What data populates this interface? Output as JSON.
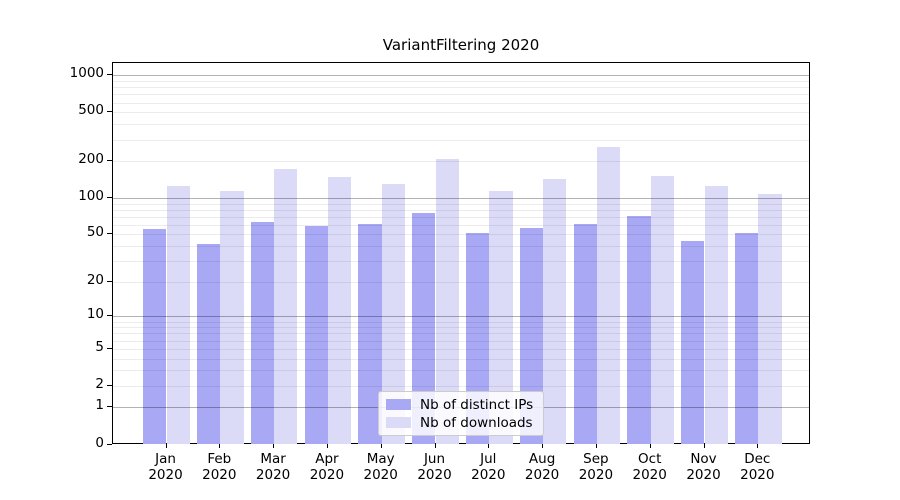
{
  "chart_data": {
    "type": "bar",
    "title": "VariantFiltering 2020",
    "categories": [
      "Jan",
      "Feb",
      "Mar",
      "Apr",
      "May",
      "Jun",
      "Jul",
      "Aug",
      "Sep",
      "Oct",
      "Nov",
      "Dec"
    ],
    "category_year": "2020",
    "series": [
      {
        "name": "Nb of distinct IPs",
        "color": "#a8a8f5",
        "values": [
          55,
          41,
          63,
          58,
          61,
          75,
          51,
          56,
          61,
          71,
          44,
          51
        ]
      },
      {
        "name": "Nb of downloads",
        "color": "#dbdbf8",
        "values": [
          124,
          113,
          172,
          146,
          128,
          205,
          113,
          141,
          258,
          149,
          125,
          106
        ]
      }
    ],
    "xlabel": "",
    "ylabel": "",
    "y_axis": {
      "scale": "log1p",
      "ticks": [
        0,
        1,
        2,
        5,
        10,
        20,
        50,
        100,
        200,
        500,
        1000
      ],
      "range": [
        0,
        1260
      ],
      "gridlines_major": [
        1,
        10,
        100,
        1000
      ]
    },
    "grid": "on",
    "legend_position": "bottom-center"
  },
  "colors": {
    "minor_grid": "rgba(0,0,0,0.075)",
    "major_grid": "rgba(0,0,0,0.30)",
    "axis": "#000000"
  }
}
